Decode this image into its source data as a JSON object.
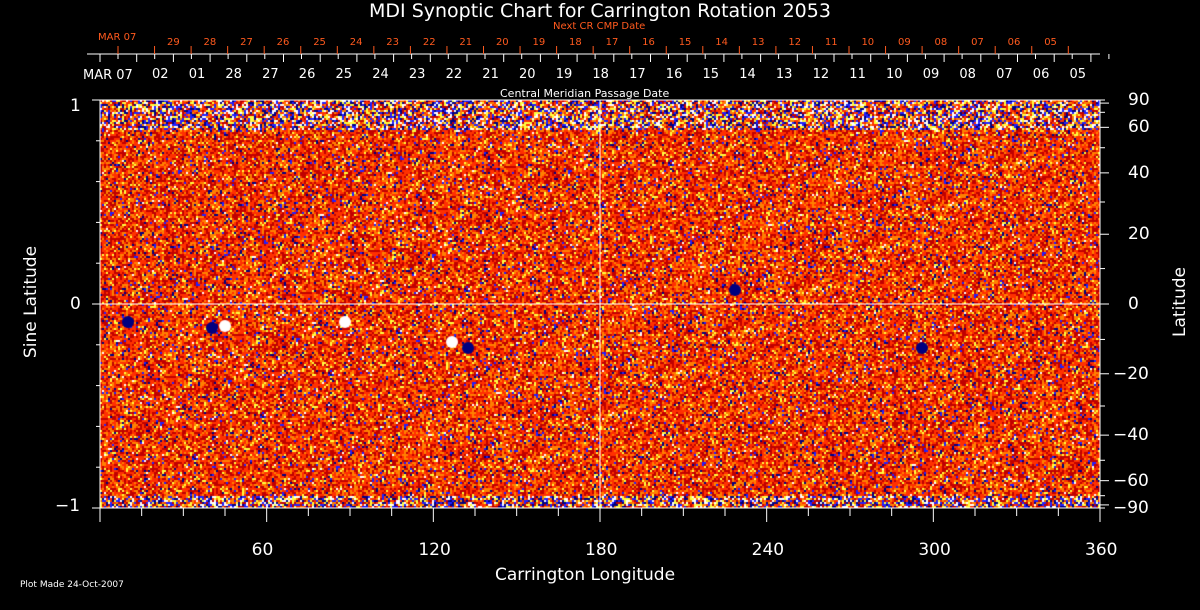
{
  "title": "MDI Synoptic Chart for Carrington Rotation 2053",
  "footer": "Plot Made 24-Oct-2007",
  "chart_data": {
    "type": "heatmap",
    "title": "MDI Synoptic Chart for Carrington Rotation 2053",
    "xlabel": "Carrington Longitude",
    "ylabel_left": "Sine Latitude",
    "ylabel_right": "Latitude",
    "xlim": [
      0,
      360
    ],
    "ylim": [
      -1,
      1
    ],
    "x_ticks": [
      "60",
      "120",
      "180",
      "240",
      "300",
      "360"
    ],
    "y_ticks_left": [
      "1",
      "0",
      "−1"
    ],
    "y_ticks_right": [
      "90",
      "60",
      "40",
      "20",
      "0",
      "−20",
      "−40",
      "−60",
      "−90"
    ],
    "top_axis_title": "Central Meridian Passage Date",
    "top_axis_start": "MAR 07",
    "top_axis_labels": [
      "02",
      "01",
      "28",
      "27",
      "26",
      "25",
      "24",
      "23",
      "22",
      "21",
      "20",
      "19",
      "18",
      "17",
      "16",
      "15",
      "14",
      "13",
      "12",
      "11",
      "10",
      "09",
      "08",
      "07",
      "06",
      "05"
    ],
    "next_axis_title": "Next CR CMP Date",
    "next_axis_start": "MAR 07",
    "next_axis_labels": [
      "29",
      "28",
      "27",
      "26",
      "25",
      "24",
      "23",
      "22",
      "21",
      "20",
      "19",
      "18",
      "17",
      "16",
      "15",
      "14",
      "13",
      "12",
      "11",
      "10",
      "09",
      "08",
      "07",
      "06",
      "05"
    ],
    "colormap": [
      "#000080",
      "#2020ff",
      "#c00000",
      "#ff3000",
      "#ff8000",
      "#ffff40",
      "#ffffff"
    ],
    "grid_lines": [
      "longitude 180",
      "sine latitude 0"
    ]
  }
}
